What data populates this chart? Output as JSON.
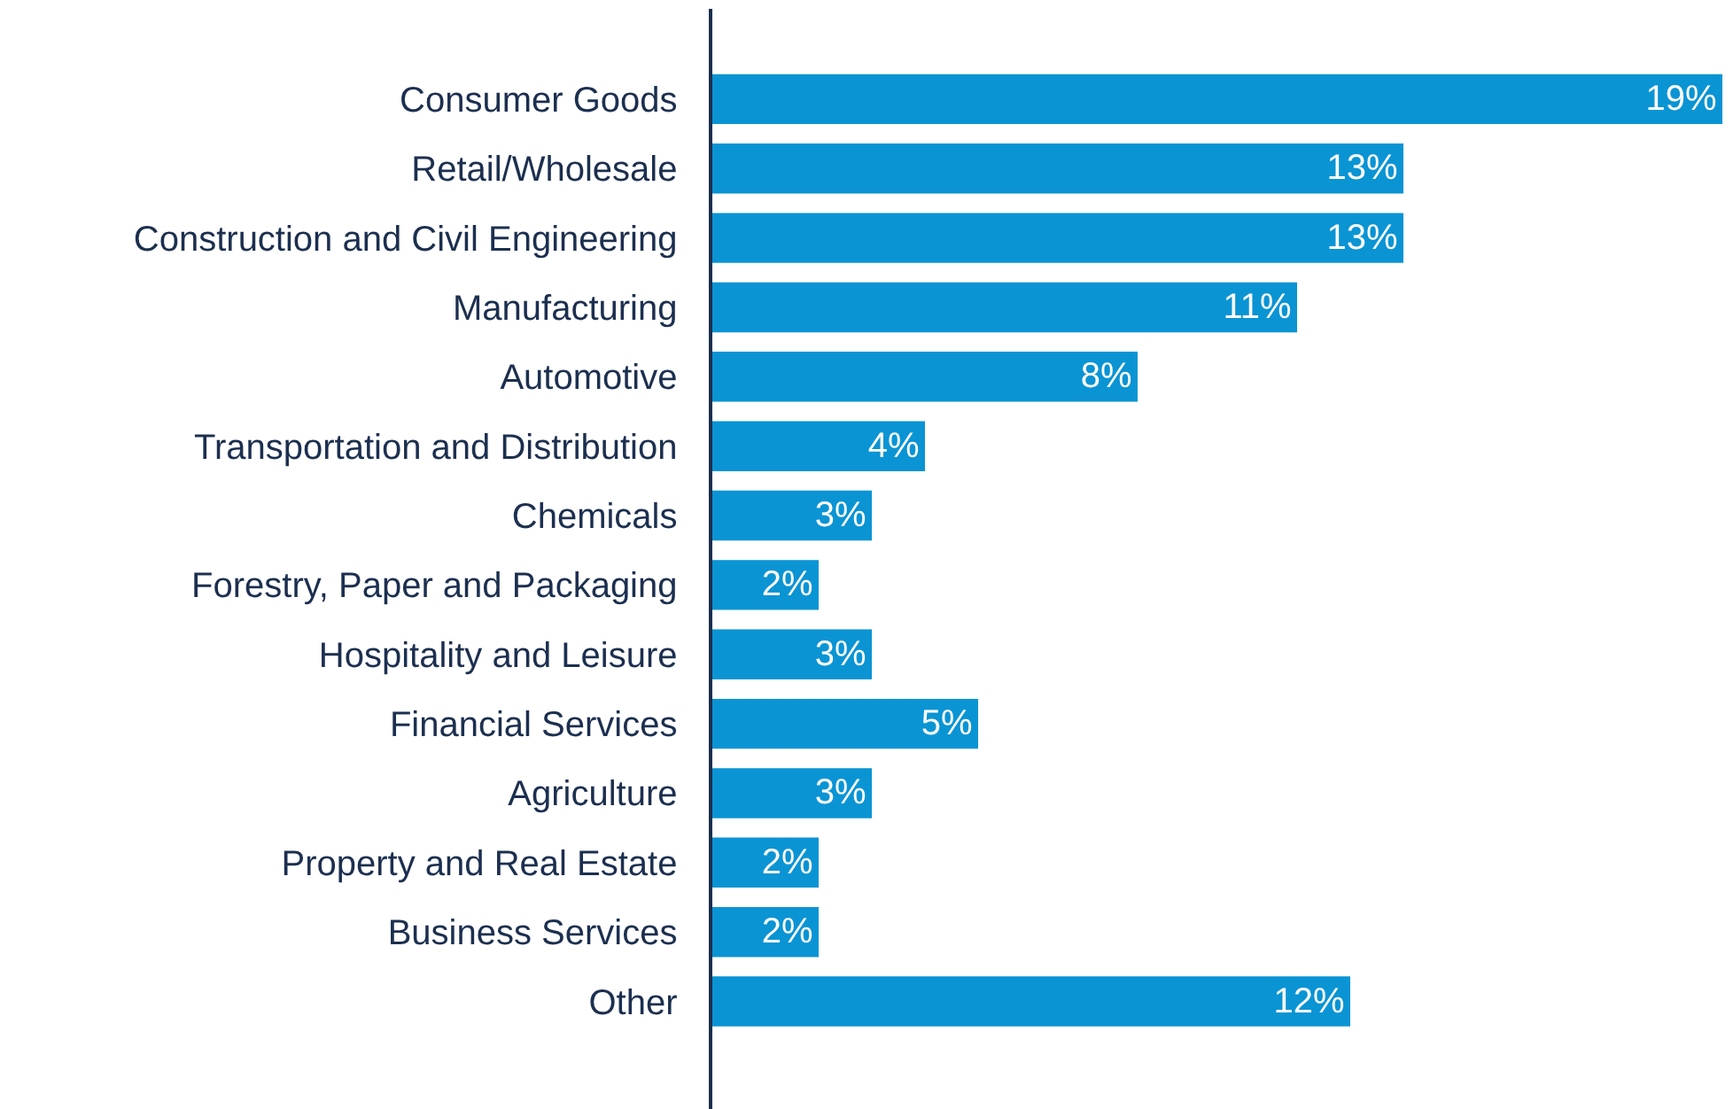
{
  "chart_data": {
    "type": "bar",
    "orientation": "horizontal",
    "categories": [
      "Consumer Goods",
      "Retail/Wholesale",
      "Construction and Civil Engineering",
      "Manufacturing",
      "Automotive",
      "Transportation and Distribution",
      "Chemicals",
      "Forestry, Paper and Packaging",
      "Hospitality and Leisure",
      "Financial Services",
      "Agriculture",
      "Property and Real Estate",
      "Business Services",
      "Other"
    ],
    "values": [
      19,
      13,
      13,
      11,
      8,
      4,
      3,
      2,
      3,
      5,
      3,
      2,
      2,
      12
    ],
    "value_labels": [
      "19%",
      "13%",
      "13%",
      "11%",
      "8%",
      "4%",
      "3%",
      "2%",
      "3%",
      "5%",
      "3%",
      "2%",
      "2%",
      "12%"
    ],
    "color": "#0a94d4"
  }
}
